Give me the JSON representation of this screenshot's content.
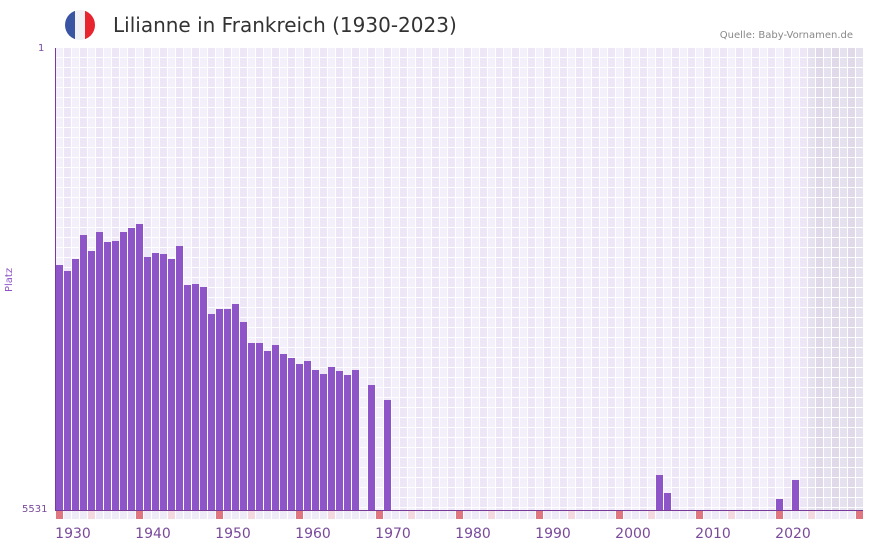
{
  "header": {
    "title": "Lilianne in Frankreich (1930-2023)",
    "source": "Quelle: Baby-Vornamen.de",
    "flag_colors": [
      "#3a54a4",
      "#f0f0f5",
      "#e8252f"
    ]
  },
  "colors": {
    "bar": "#8e55c8",
    "grid_a": "#f3effb",
    "grid_b": "#ece6f7",
    "future_a": "#e6e1ef",
    "future_b": "#dfd9ea",
    "marker_decade": "#e07680",
    "marker_half": "#f5d7df",
    "marker_other": "#efeaf8"
  },
  "chart_data": {
    "type": "bar",
    "title": "Lilianne in Frankreich (1930-2023)",
    "xlabel": "",
    "ylabel": "Platz",
    "y_axis_inverted": true,
    "ylim": [
      1,
      5531
    ],
    "y_tick_labels": [
      "1",
      "5531"
    ],
    "x_tick_labels": [
      "1930",
      "1940",
      "1950",
      "1960",
      "1970",
      "1980",
      "1990",
      "2000",
      "2010",
      "2020"
    ],
    "x_range": [
      1930,
      2030
    ],
    "grid": true,
    "shaded_future_from": 2024,
    "years": [
      1930,
      1931,
      1932,
      1933,
      1934,
      1935,
      1936,
      1937,
      1938,
      1939,
      1940,
      1941,
      1942,
      1943,
      1944,
      1945,
      1946,
      1947,
      1948,
      1949,
      1950,
      1951,
      1952,
      1953,
      1954,
      1955,
      1956,
      1957,
      1958,
      1959,
      1960,
      1961,
      1962,
      1963,
      1964,
      1965,
      1966,
      1967,
      1969,
      1971,
      2005,
      2006,
      2020,
      2022
    ],
    "ranks": [
      2597,
      2669,
      2525,
      2238,
      2429,
      2202,
      2322,
      2310,
      2202,
      2154,
      2106,
      2501,
      2453,
      2465,
      2525,
      2370,
      2837,
      2825,
      2861,
      3185,
      3125,
      3125,
      3065,
      3281,
      3532,
      3532,
      3628,
      3556,
      3664,
      3712,
      3784,
      3748,
      3855,
      3903,
      3819,
      3867,
      3915,
      3855,
      4035,
      4214,
      5112,
      5327,
      5399,
      5172
    ]
  }
}
